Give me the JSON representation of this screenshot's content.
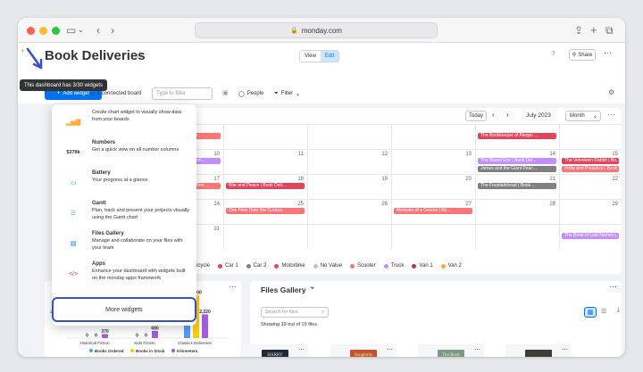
{
  "browser": {
    "url": "monday.com"
  },
  "header": {
    "title": "Book Deliveries",
    "view_label": "View",
    "edit_label": "Edit",
    "help_label": "?",
    "share_label": "Share"
  },
  "toolbar": {
    "add_widget_label": "Add widget",
    "connected_board_label": "1 connected board",
    "filter_placeholder": "Type to filter",
    "people_label": "People",
    "filter_label": "Filter"
  },
  "tooltip": "This dashboard has 3/30 widgets",
  "add_widget_menu": {
    "items": [
      {
        "title": "",
        "desc": "Create chart widget to visually show data from your boards",
        "icon": "chart-icon"
      },
      {
        "title": "Numbers",
        "desc": "Get a quick view on all number columns",
        "icon": "numbers-icon",
        "icon_text": "$378k"
      },
      {
        "title": "Battery",
        "desc": "Your progress at a glance",
        "icon": "battery-icon"
      },
      {
        "title": "Gantt",
        "desc": "Plan, track and present your projects visually using the Gantt chart",
        "icon": "gantt-icon"
      },
      {
        "title": "Files Gallery",
        "desc": "Manage and collaborate on your files with your team",
        "icon": "files-gallery-icon"
      },
      {
        "title": "Apps",
        "desc": "Enhance your dashboard with widgets built on the monday apps framework",
        "icon": "apps-icon"
      }
    ],
    "more_label": "More widgets"
  },
  "calendar": {
    "today_label": "Today",
    "month_label": "July 2023",
    "view_select": "Month",
    "day_numbers": [
      [
        "",
        "",
        "",
        "",
        "",
        "",
        ""
      ],
      [
        "",
        "10",
        "11",
        "12",
        "13",
        "14",
        "15"
      ],
      [
        "",
        "17",
        "18",
        "19",
        "20",
        "21",
        "22"
      ],
      [
        "",
        "24",
        "25",
        "26",
        "27",
        "28",
        "29"
      ],
      [
        "",
        "31",
        "",
        "",
        "",
        "",
        ""
      ]
    ],
    "events": [
      {
        "text": "The Bookkeeper of Aleppo ...",
        "row": 0,
        "col": 4,
        "slot": 0,
        "color": "#e2445c"
      },
      {
        "text": "...rente...",
        "row": 0,
        "col": 0,
        "slot": 0,
        "color": "#ff7575"
      },
      {
        "text": "...ok Deli...",
        "row": 1,
        "col": 0,
        "slot": 0,
        "color": "#c38fff"
      },
      {
        "text": "The Bluest Eye | Book Del...",
        "row": 1,
        "col": 4,
        "slot": 0,
        "color": "#c38fff"
      },
      {
        "text": "James and the Giant Peac...",
        "row": 1,
        "col": 4,
        "slot": 1,
        "color": "#808080"
      },
      {
        "text": "The Velveteen Rabbit | Bo...",
        "row": 1,
        "col": 5,
        "slot": 0,
        "color": "#e2445c"
      },
      {
        "text": "Pride and Prejudice | Book ...",
        "row": 1,
        "col": 5,
        "slot": 1,
        "color": "#ff7575"
      },
      {
        "text": "...es | Boo...",
        "row": 2,
        "col": 0,
        "slot": 0,
        "color": "#ff7575"
      },
      {
        "text": "War and Peace | Book Deli...",
        "row": 2,
        "col": 1,
        "slot": 0,
        "color": "#e2445c"
      },
      {
        "text": "The Fountainhead | Book ...",
        "row": 2,
        "col": 4,
        "slot": 0,
        "color": "#808080"
      },
      {
        "text": "One Flew Over the Cuckoo...",
        "row": 3,
        "col": 1,
        "slot": 0,
        "color": "#ff7575"
      },
      {
        "text": "Memoirs of a Geisha | Bo...",
        "row": 3,
        "col": 3,
        "slot": 0,
        "color": "#ff7575"
      },
      {
        "text": "The Book of Lost Names |...",
        "row": 4,
        "col": 5,
        "slot": 0,
        "color": "#c38fff"
      }
    ],
    "legend": [
      {
        "label": "Bicycle",
        "color": "#ff7575"
      },
      {
        "label": "Car 1",
        "color": "#e2445c"
      },
      {
        "label": "Car 2",
        "color": "#808080"
      },
      {
        "label": "Motorbike",
        "color": "#e2445c"
      },
      {
        "label": "No Value",
        "color": "#c4c4c4"
      },
      {
        "label": "Scooter",
        "color": "#ff7575"
      },
      {
        "label": "Truck",
        "color": "#c38fff"
      },
      {
        "label": "Van 1",
        "color": "#bb3354"
      },
      {
        "label": "Van 2",
        "color": "#fdab3d"
      }
    ]
  },
  "chart_data": {
    "type": "bar",
    "categories": [
      "Historical Fiction",
      "Kids Fiction",
      "Classics Deliveries"
    ],
    "series": [
      {
        "name": "Books Ordered",
        "color": "#579bfc",
        "values": [
          0,
          0,
          3240
        ]
      },
      {
        "name": "Books in Stock",
        "color": "#ffcb00",
        "values": [
          0,
          0,
          4000
        ]
      },
      {
        "name": "Kilometers",
        "color": "#a25ddc",
        "values": [
          370,
          680,
          2220
        ]
      }
    ],
    "ytick_label": "2,500",
    "data_labels": [
      [
        "0",
        "0",
        "370"
      ],
      [
        "0",
        "0",
        "680"
      ],
      [
        "3,240",
        "4,000",
        "2,220"
      ]
    ],
    "ylim": [
      0,
      4500
    ]
  },
  "files_gallery": {
    "title": "Files Gallery",
    "search_placeholder": "Search for files",
    "summary": "Showing 19 out of 19 files",
    "thumbnails": [
      {
        "label": "HARRY POTTER",
        "color": "#1e2a3a"
      },
      {
        "label": "Songbirds",
        "color": "#c4532c"
      },
      {
        "label": "The Book",
        "color": "#7a9a84"
      },
      {
        "label": "",
        "color": "#3d3d36"
      }
    ]
  },
  "colors": {
    "primary": "#0073ea",
    "highlight_border": "#3b4fc4",
    "arrow": "#3b4fc4"
  }
}
